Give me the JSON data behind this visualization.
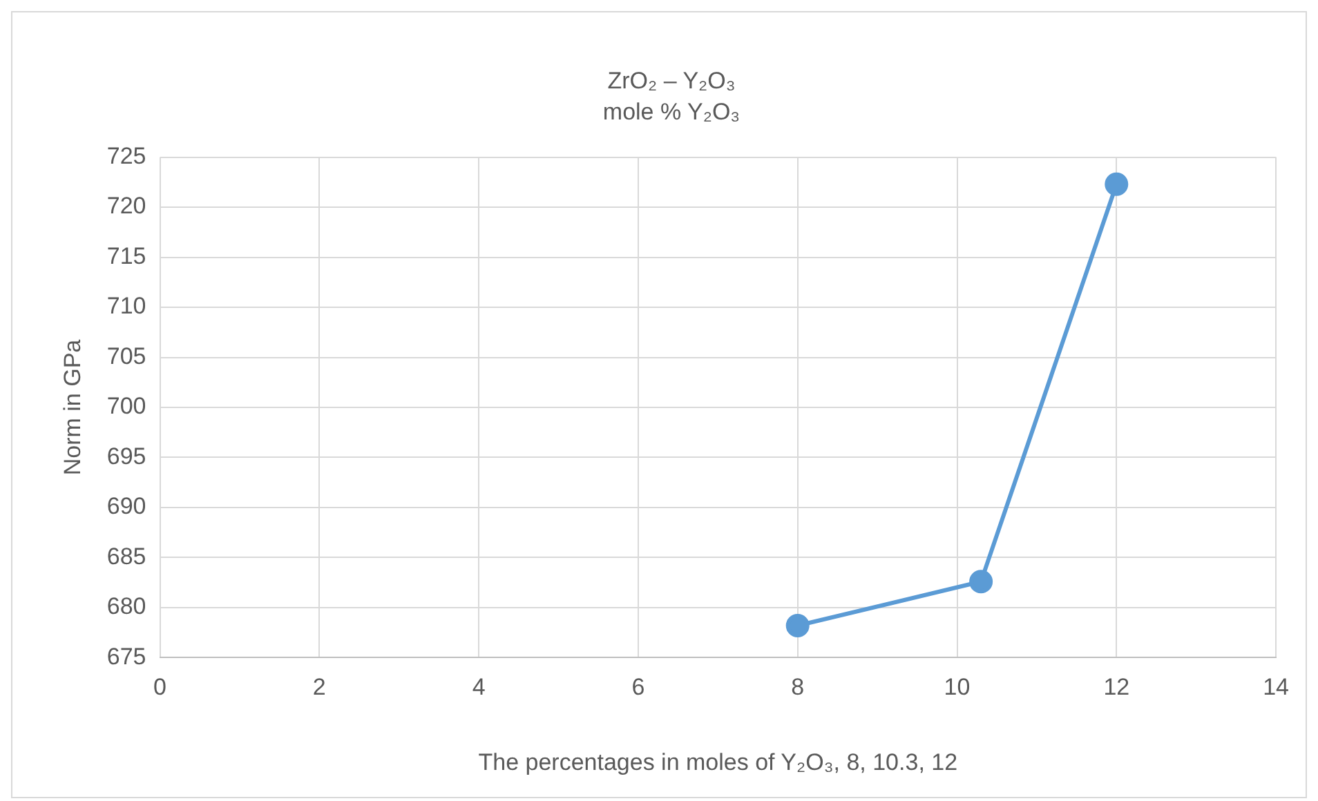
{
  "chart_data": {
    "type": "line",
    "title": "ZrO₂ – Y₂O₃",
    "subtitle": "mole % Y₂O₃",
    "xlabel": "The percentages in moles of Y₂O₃, 8, 10.3, 12",
    "ylabel": "Norm in GPa",
    "series": [
      {
        "color": "#5b9bd5",
        "x": [
          8,
          10.3,
          12
        ],
        "values": [
          678.2,
          682.6,
          722.3
        ]
      }
    ],
    "xlim": [
      0,
      14
    ],
    "xticks": [
      0,
      2,
      4,
      6,
      8,
      10,
      12,
      14
    ],
    "ylim": [
      675,
      725
    ],
    "yticks": [
      675,
      680,
      685,
      690,
      695,
      700,
      705,
      710,
      715,
      720,
      725
    ],
    "grid": true,
    "legend": false,
    "marker": "circle",
    "line_style": "solid"
  }
}
